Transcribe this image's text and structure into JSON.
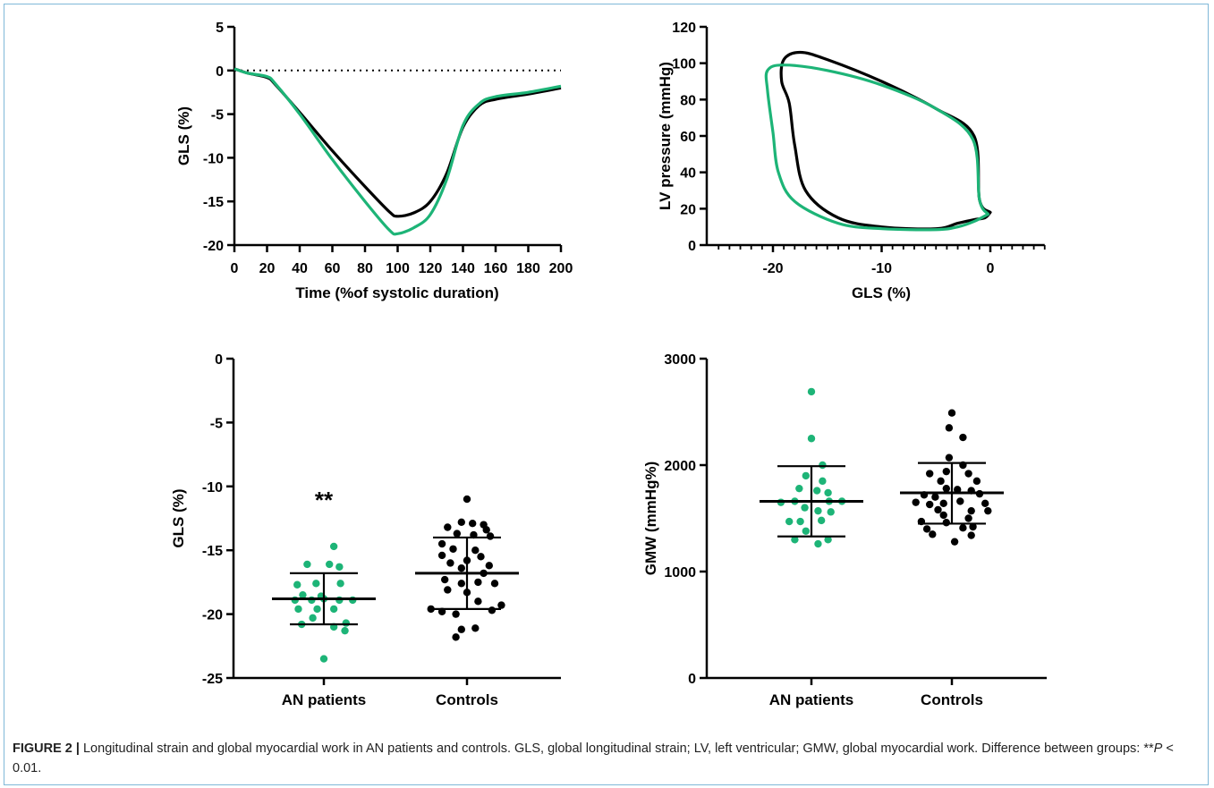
{
  "colors": {
    "an": "#1db477",
    "controls": "#000000"
  },
  "caption": {
    "label": "FIGURE 2 |",
    "text_before": " Longitudinal strain and global myocardial work in AN patients and controls. GLS, global longitudinal strain; LV, left ventricular; GMW, global myocardial work. Difference between groups: **",
    "p_symbol": "P",
    "text_after": " < 0.01."
  },
  "chart_data": [
    {
      "type": "line",
      "xlabel": "Time (%of systolic duration)",
      "ylabel": "GLS (%)",
      "xlim": [
        0,
        200
      ],
      "ylim": [
        -20,
        5
      ],
      "xticks": [
        "0",
        "20",
        "40",
        "60",
        "80",
        "100",
        "120",
        "140",
        "160",
        "180",
        "200"
      ],
      "yticks": [
        "5",
        "0",
        "-5",
        "-10",
        "-15",
        "-20"
      ],
      "reference_line": 0,
      "series": [
        {
          "color": "#000000",
          "x": [
            0,
            8,
            20,
            25,
            40,
            60,
            80,
            95,
            100,
            110,
            120,
            130,
            140,
            150,
            160,
            180,
            200
          ],
          "y": [
            0.2,
            -0.3,
            -0.8,
            -1.6,
            -4.8,
            -9.2,
            -13.3,
            -16.2,
            -16.7,
            -16.3,
            -15.0,
            -11.8,
            -6.5,
            -4.0,
            -3.3,
            -2.7,
            -2.0
          ]
        },
        {
          "color": "#1db477",
          "x": [
            0,
            8,
            20,
            25,
            40,
            60,
            80,
            95,
            100,
            110,
            120,
            130,
            140,
            150,
            160,
            180,
            200
          ],
          "y": [
            0.2,
            -0.3,
            -0.7,
            -1.5,
            -5.0,
            -10.2,
            -15.0,
            -18.3,
            -18.7,
            -18.0,
            -16.5,
            -12.5,
            -6.3,
            -3.8,
            -3.0,
            -2.5,
            -1.8
          ]
        }
      ]
    },
    {
      "type": "line",
      "xlabel": "GLS (%)",
      "ylabel": "LV pressure (mmHg)",
      "xlim": [
        -25,
        5
      ],
      "ylim": [
        0,
        120
      ],
      "xticks": [
        "-20",
        "-10",
        "0"
      ],
      "yticks": [
        "120",
        "100",
        "80",
        "60",
        "40",
        "20",
        "0"
      ],
      "series": [
        {
          "color": "#000000",
          "x": [
            0,
            -1,
            -1.5,
            -5,
            -10,
            -15,
            -17.5,
            -19,
            -19.2,
            -18.5,
            -18.0,
            -17.0,
            -14,
            -10,
            -5,
            -3,
            -1.5,
            -0.5,
            0
          ],
          "y": [
            18,
            25,
            60,
            75,
            90,
            102,
            106,
            102,
            90,
            78,
            55,
            30,
            15,
            10,
            9,
            12,
            14,
            15,
            18
          ]
        },
        {
          "color": "#1db477",
          "x": [
            -0.2,
            -1,
            -1.6,
            -5,
            -10,
            -15,
            -19,
            -20.5,
            -20.5,
            -20.0,
            -19.5,
            -18,
            -14,
            -10,
            -5,
            -3,
            -1.5,
            -0.2
          ],
          "y": [
            17,
            25,
            58,
            75,
            88,
            96,
            99,
            96,
            85,
            62,
            40,
            24,
            12,
            9,
            8.5,
            10,
            13,
            17
          ]
        }
      ]
    },
    {
      "type": "scatter",
      "ylabel": "GLS (%)",
      "categories": [
        "AN patients",
        "Controls"
      ],
      "ylim": [
        -25,
        0
      ],
      "yticks": [
        "0",
        "-5",
        "-10",
        "-15",
        "-20",
        "-25"
      ],
      "annotation": "**",
      "groups": [
        {
          "color": "#1db477",
          "mean": -18.8,
          "sd_low": -20.8,
          "sd_high": -16.8,
          "points": [
            [
              0.18,
              -14.7
            ],
            [
              -0.3,
              -16.1
            ],
            [
              0.1,
              -16.1
            ],
            [
              0.28,
              -16.3
            ],
            [
              -0.48,
              -17.7
            ],
            [
              -0.14,
              -17.6
            ],
            [
              0.3,
              -17.6
            ],
            [
              -0.38,
              -18.5
            ],
            [
              -0.05,
              -18.6
            ],
            [
              0.0,
              -18.8
            ],
            [
              -0.52,
              -18.9
            ],
            [
              -0.22,
              -18.9
            ],
            [
              0.28,
              -18.9
            ],
            [
              0.52,
              -18.9
            ],
            [
              -0.46,
              -19.6
            ],
            [
              -0.12,
              -19.6
            ],
            [
              0.18,
              -19.6
            ],
            [
              -0.2,
              -20.3
            ],
            [
              -0.4,
              -20.8
            ],
            [
              0.4,
              -20.7
            ],
            [
              0.18,
              -21.0
            ],
            [
              0.38,
              -21.3
            ],
            [
              0.0,
              -23.5
            ]
          ]
        },
        {
          "color": "#000000",
          "mean": -16.8,
          "sd_low": -19.6,
          "sd_high": -14.0,
          "points": [
            [
              0.0,
              -11.0
            ],
            [
              -0.1,
              -12.8
            ],
            [
              0.1,
              -12.9
            ],
            [
              0.3,
              -13.0
            ],
            [
              -0.35,
              -13.2
            ],
            [
              0.35,
              -13.4
            ],
            [
              -0.18,
              -13.7
            ],
            [
              0.12,
              -13.8
            ],
            [
              0.42,
              -13.9
            ],
            [
              -0.45,
              -14.5
            ],
            [
              -0.25,
              -14.9
            ],
            [
              0.15,
              -15.0
            ],
            [
              -0.45,
              -15.4
            ],
            [
              0.25,
              -15.5
            ],
            [
              0.0,
              -15.8
            ],
            [
              -0.3,
              -16.0
            ],
            [
              0.4,
              -16.2
            ],
            [
              -0.1,
              -16.4
            ],
            [
              0.3,
              -16.8
            ],
            [
              -0.4,
              -17.3
            ],
            [
              -0.1,
              -17.6
            ],
            [
              0.2,
              -17.5
            ],
            [
              0.5,
              -17.6
            ],
            [
              -0.35,
              -18.1
            ],
            [
              0.0,
              -18.3
            ],
            [
              0.2,
              -19.0
            ],
            [
              -0.65,
              -19.6
            ],
            [
              -0.45,
              -19.8
            ],
            [
              0.45,
              -19.7
            ],
            [
              0.62,
              -19.3
            ],
            [
              -0.2,
              -20.0
            ],
            [
              -0.1,
              -21.2
            ],
            [
              0.15,
              -21.1
            ],
            [
              -0.2,
              -21.8
            ]
          ]
        }
      ]
    },
    {
      "type": "scatter",
      "ylabel": "GMW (mmHg%)",
      "categories": [
        "AN patients",
        "Controls"
      ],
      "ylim": [
        0,
        3000
      ],
      "yticks": [
        "3000",
        "2000",
        "1000",
        "0"
      ],
      "groups": [
        {
          "color": "#1db477",
          "mean": 1660,
          "sd_low": 1330,
          "sd_high": 1990,
          "points": [
            [
              0.0,
              2690
            ],
            [
              0.0,
              2250
            ],
            [
              0.2,
              2000
            ],
            [
              -0.1,
              1900
            ],
            [
              0.2,
              1850
            ],
            [
              -0.22,
              1780
            ],
            [
              0.1,
              1760
            ],
            [
              0.3,
              1740
            ],
            [
              -0.55,
              1650
            ],
            [
              -0.3,
              1660
            ],
            [
              0.32,
              1660
            ],
            [
              0.55,
              1660
            ],
            [
              -0.12,
              1600
            ],
            [
              0.12,
              1570
            ],
            [
              0.35,
              1560
            ],
            [
              -0.4,
              1470
            ],
            [
              -0.2,
              1470
            ],
            [
              0.18,
              1480
            ],
            [
              -0.1,
              1380
            ],
            [
              -0.3,
              1300
            ],
            [
              0.3,
              1300
            ],
            [
              0.12,
              1260
            ]
          ]
        },
        {
          "color": "#000000",
          "mean": 1740,
          "sd_low": 1450,
          "sd_high": 2020,
          "points": [
            [
              0.0,
              2490
            ],
            [
              -0.05,
              2350
            ],
            [
              0.2,
              2260
            ],
            [
              -0.05,
              2070
            ],
            [
              0.2,
              2000
            ],
            [
              -0.4,
              1920
            ],
            [
              -0.1,
              1940
            ],
            [
              0.3,
              1920
            ],
            [
              -0.2,
              1850
            ],
            [
              0.45,
              1850
            ],
            [
              -0.1,
              1780
            ],
            [
              0.1,
              1770
            ],
            [
              0.35,
              1760
            ],
            [
              -0.5,
              1720
            ],
            [
              -0.3,
              1700
            ],
            [
              0.5,
              1730
            ],
            [
              -0.65,
              1650
            ],
            [
              -0.4,
              1630
            ],
            [
              -0.15,
              1640
            ],
            [
              0.15,
              1660
            ],
            [
              0.6,
              1640
            ],
            [
              -0.25,
              1580
            ],
            [
              0.35,
              1570
            ],
            [
              0.65,
              1570
            ],
            [
              -0.15,
              1530
            ],
            [
              0.3,
              1500
            ],
            [
              -0.55,
              1470
            ],
            [
              -0.1,
              1460
            ],
            [
              -0.45,
              1400
            ],
            [
              0.2,
              1410
            ],
            [
              0.38,
              1420
            ],
            [
              -0.35,
              1350
            ],
            [
              0.35,
              1340
            ],
            [
              0.05,
              1280
            ]
          ]
        }
      ]
    }
  ]
}
